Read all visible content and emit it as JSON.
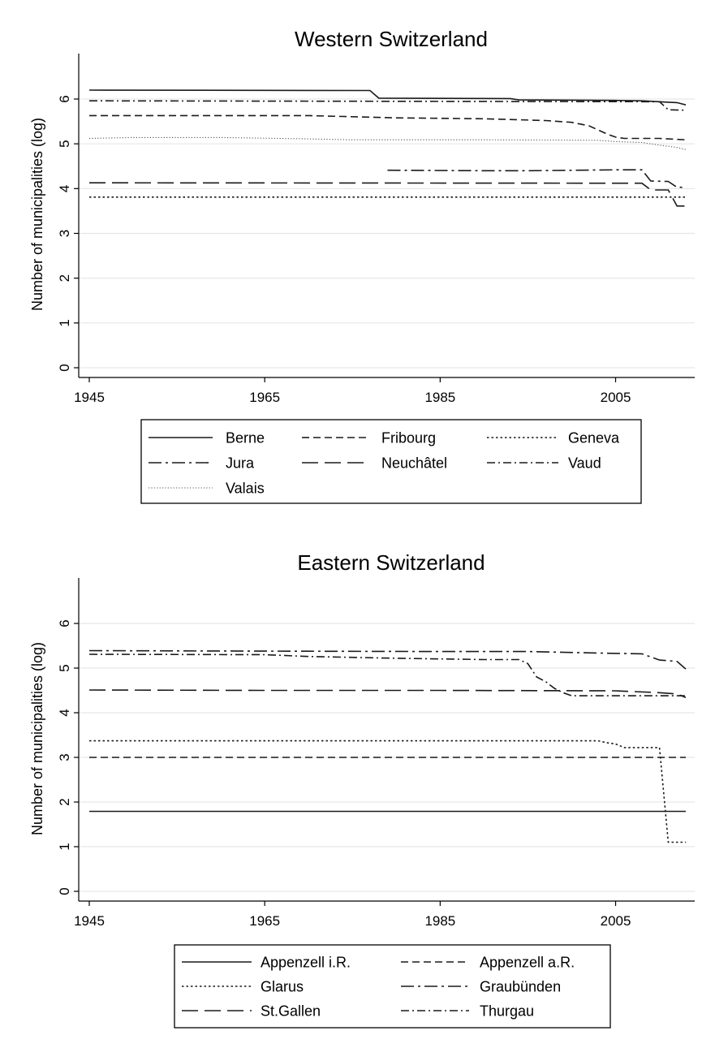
{
  "chart_data": [
    {
      "type": "line",
      "title": "Western Switzerland",
      "xlabel": "",
      "ylabel": "Number of municipalities (log)",
      "xlim": [
        1945,
        2013
      ],
      "ylim": [
        0,
        6.5
      ],
      "xticks": [
        1945,
        1965,
        1985,
        2005
      ],
      "yticks": [
        0,
        1,
        2,
        3,
        4,
        5,
        6
      ],
      "grid": "horizontal",
      "legend_position": "bottom",
      "legend_columns": 3,
      "series": [
        {
          "name": "Berne",
          "dash": "solid",
          "x": [
            1945,
            1977,
            1978,
            1993,
            1994,
            2005,
            2008,
            2010,
            2011,
            2012,
            2013
          ],
          "y": [
            6.2,
            6.19,
            6.02,
            6.01,
            5.98,
            5.97,
            5.96,
            5.94,
            5.93,
            5.92,
            5.87
          ]
        },
        {
          "name": "Fribourg",
          "dash": "dash",
          "x": [
            1945,
            1970,
            1980,
            1990,
            1997,
            2000,
            2002,
            2004,
            2005,
            2006,
            2010,
            2013
          ],
          "y": [
            5.63,
            5.63,
            5.58,
            5.56,
            5.52,
            5.48,
            5.4,
            5.22,
            5.15,
            5.12,
            5.12,
            5.09
          ]
        },
        {
          "name": "Geneva",
          "dash": "dot",
          "x": [
            1945,
            2013
          ],
          "y": [
            3.81,
            3.81
          ]
        },
        {
          "name": "Jura",
          "dash": "dashdot",
          "x": [
            1979,
            1990,
            1995,
            2005,
            2008,
            2009,
            2011,
            2012,
            2013
          ],
          "y": [
            4.41,
            4.4,
            4.4,
            4.42,
            4.42,
            4.17,
            4.16,
            4.03,
            4.03
          ]
        },
        {
          "name": "Neuchâtel",
          "dash": "longdash",
          "x": [
            1945,
            2008,
            2009,
            2011,
            2012,
            2013
          ],
          "y": [
            4.13,
            4.12,
            3.97,
            3.97,
            3.61,
            3.61
          ]
        },
        {
          "name": "Vaud",
          "dash": "dashdot2",
          "x": [
            1945,
            2010,
            2011,
            2013
          ],
          "y": [
            5.96,
            5.94,
            5.76,
            5.75
          ]
        },
        {
          "name": "Valais",
          "dash": "fine",
          "x": [
            1945,
            1950,
            1960,
            1970,
            1975,
            1990,
            2003,
            2005,
            2008,
            2010,
            2012,
            2013
          ],
          "y": [
            5.12,
            5.14,
            5.14,
            5.11,
            5.09,
            5.09,
            5.08,
            5.05,
            5.03,
            4.97,
            4.92,
            4.87
          ]
        }
      ]
    },
    {
      "type": "line",
      "title": "Eastern Switzerland",
      "xlabel": "",
      "ylabel": "Number of municipalities (log)",
      "xlim": [
        1945,
        2013
      ],
      "ylim": [
        0,
        6.5
      ],
      "xticks": [
        1945,
        1965,
        1985,
        2005
      ],
      "yticks": [
        0,
        1,
        2,
        3,
        4,
        5,
        6
      ],
      "grid": "horizontal",
      "legend_position": "bottom",
      "legend_columns": 2,
      "series": [
        {
          "name": "Appenzell i.R.",
          "dash": "solid",
          "x": [
            1945,
            2013
          ],
          "y": [
            1.79,
            1.79
          ]
        },
        {
          "name": "Appenzell a.R.",
          "dash": "dash",
          "x": [
            1945,
            2013
          ],
          "y": [
            3.0,
            3.0
          ]
        },
        {
          "name": "Glarus",
          "dash": "dot",
          "x": [
            1945,
            2003,
            2004,
            2005,
            2006,
            2007,
            2010,
            2011,
            2013
          ],
          "y": [
            3.37,
            3.37,
            3.33,
            3.3,
            3.22,
            3.22,
            3.22,
            1.1,
            1.1
          ]
        },
        {
          "name": "Graubünden",
          "dash": "dashdot",
          "x": [
            1945,
            1965,
            1985,
            1995,
            2005,
            2008,
            2010,
            2012,
            2013
          ],
          "y": [
            5.39,
            5.38,
            5.37,
            5.37,
            5.33,
            5.32,
            5.18,
            5.15,
            4.98
          ]
        },
        {
          "name": "St.Gallen",
          "dash": "longdash",
          "x": [
            1945,
            1965,
            1985,
            2005,
            2010,
            2012,
            2013
          ],
          "y": [
            4.51,
            4.5,
            4.5,
            4.49,
            4.45,
            4.42,
            4.34
          ]
        },
        {
          "name": "Thurgau",
          "dash": "dashdot2",
          "x": [
            1945,
            1965,
            1970,
            1980,
            1990,
            1994,
            1995,
            1996,
            1997,
            1998,
            1999,
            2000,
            2013
          ],
          "y": [
            5.31,
            5.3,
            5.26,
            5.22,
            5.19,
            5.19,
            5.1,
            4.8,
            4.7,
            4.55,
            4.45,
            4.38,
            4.38
          ]
        }
      ]
    }
  ]
}
